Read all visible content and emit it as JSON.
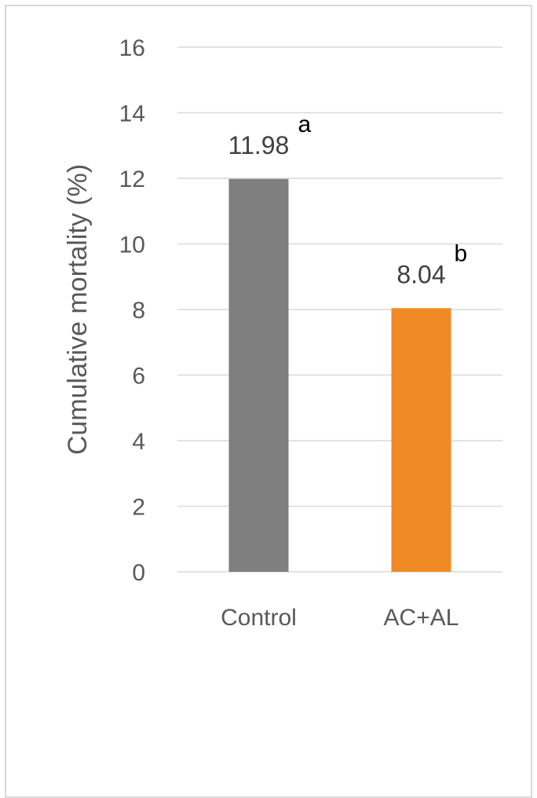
{
  "chart_data": {
    "type": "bar",
    "categories": [
      "Control",
      "AC+AL"
    ],
    "values": [
      11.98,
      8.04
    ],
    "value_labels": [
      "11.98",
      "8.04"
    ],
    "significance_letters": [
      "a",
      "b"
    ],
    "bar_colors": [
      "#7f7f7f",
      "#f08a24"
    ],
    "title": "",
    "xlabel": "",
    "ylabel": "Cumulative mortality (%)",
    "ylim": [
      0,
      16
    ],
    "yticks": [
      0,
      2,
      4,
      6,
      8,
      10,
      12,
      14,
      16
    ],
    "grid": true,
    "gridline_color": "#d9d9d9",
    "legend": "none"
  }
}
